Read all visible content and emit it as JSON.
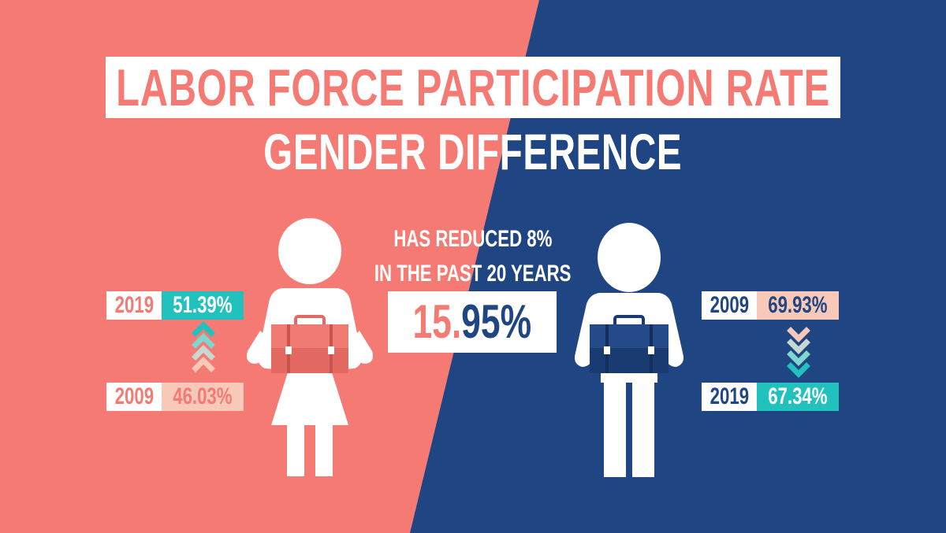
{
  "title": "LABOR FORCE PARTICIPATION RATE",
  "subtitle": "GENDER DIFFERENCE",
  "note_line1": "HAS REDUCED 8%",
  "note_line2": "IN THE PAST 20 YEARS",
  "difference_value": "15.95%",
  "women": {
    "top": {
      "year": "2019",
      "rate": "51.39%"
    },
    "bottom": {
      "year": "2009",
      "rate": "46.03%"
    },
    "trend": "increase"
  },
  "men": {
    "top": {
      "year": "2009",
      "rate": "69.93%"
    },
    "bottom": {
      "year": "2019",
      "rate": "67.34%"
    },
    "trend": "decrease"
  },
  "colors": {
    "coral": "#f47a73",
    "navy": "#1f4583",
    "teal": "#21c1bd",
    "peach": "#f8c8b8",
    "white": "#ffffff"
  },
  "icons": {
    "woman": "woman-with-briefcase-icon",
    "man": "man-with-briefcase-icon",
    "up_arrows": "chevron-up-icon",
    "down_arrows": "chevron-down-icon"
  }
}
